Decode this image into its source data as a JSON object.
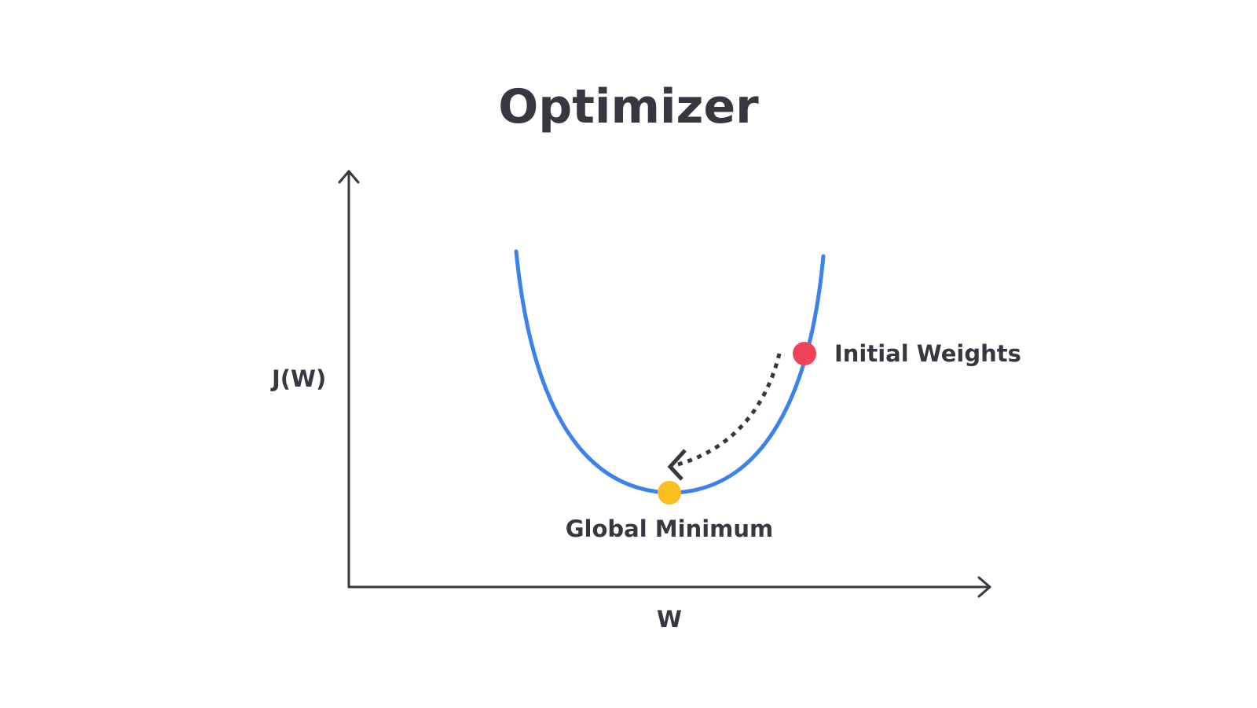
{
  "title": "Optimizer",
  "axes": {
    "y_label": "J(W)",
    "x_label": "W"
  },
  "curve": {
    "shape": "convex-u",
    "color": "#3b82ee"
  },
  "points": {
    "initial": {
      "label": "Initial Weights",
      "color": "#f0435a"
    },
    "minimum": {
      "label": "Global Minimum",
      "color": "#fbbd22"
    }
  },
  "step": {
    "style": "dashed",
    "direction": "from-initial-to-minimum"
  }
}
